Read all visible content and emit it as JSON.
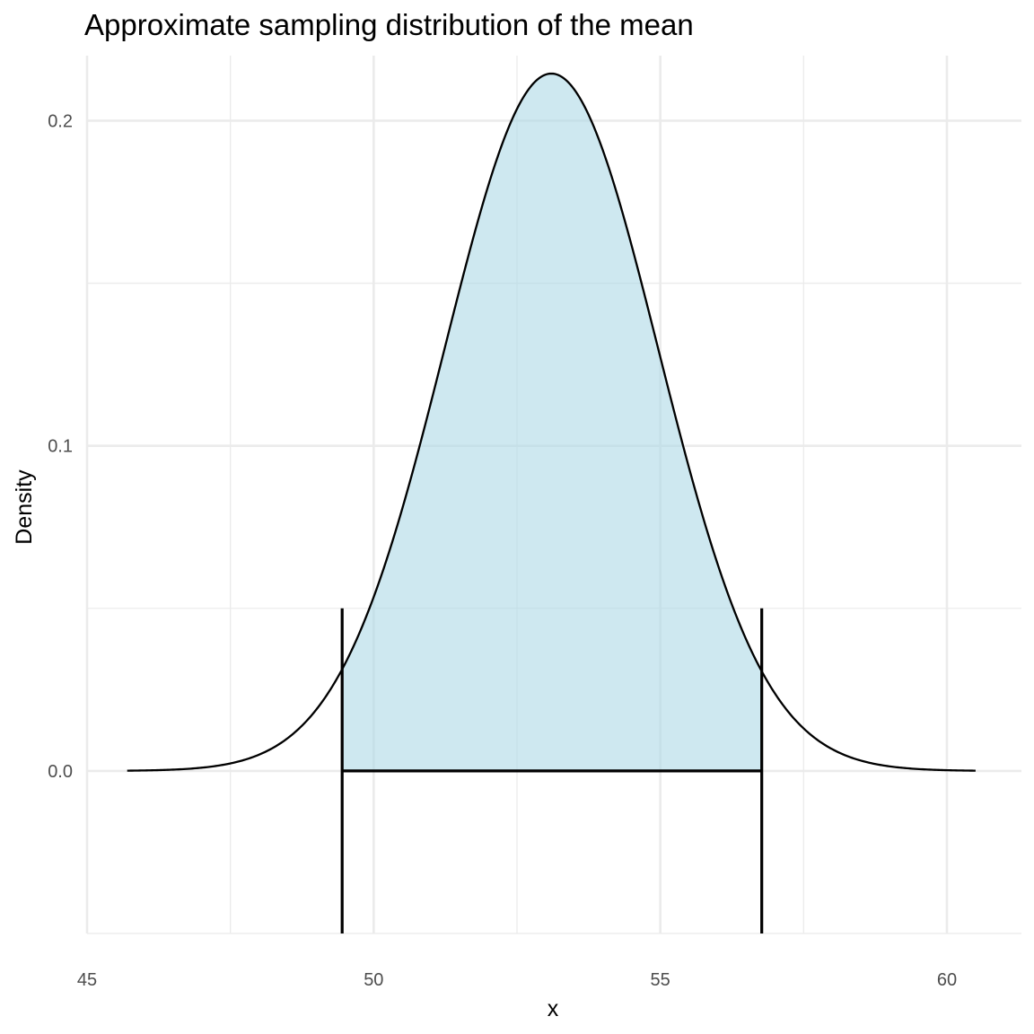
{
  "chart_data": {
    "type": "area",
    "title": "Approximate sampling distribution of the mean",
    "xlabel": "x",
    "ylabel": "Density",
    "xlim": [
      45,
      61.3
    ],
    "ylim": [
      -0.05,
      0.22
    ],
    "x_ticks": [
      45,
      50,
      55,
      60
    ],
    "x_tick_labels": [
      "45",
      "50",
      "55",
      "60"
    ],
    "x_minor_ticks": [
      47.5,
      52.5,
      57.5
    ],
    "y_ticks": [
      0.0,
      0.1,
      0.2
    ],
    "y_tick_labels": [
      "0.0",
      "0.1",
      "0.2"
    ],
    "y_minor_ticks": [
      -0.05,
      0.05,
      0.15
    ],
    "grid": true,
    "legend": "none",
    "distribution": {
      "kind": "normal",
      "mean": 53.1,
      "sd": 1.86,
      "x_from": 45.7,
      "x_to": 60.5
    },
    "interval": {
      "lower": 49.45,
      "upper": 56.77,
      "bracket_y_min": -0.05,
      "bracket_y_max": 0.05,
      "baseline_y": 0.0
    },
    "colors": {
      "fill": "#add8e6",
      "curve": "#000000",
      "grid": "#ebebeb"
    }
  }
}
